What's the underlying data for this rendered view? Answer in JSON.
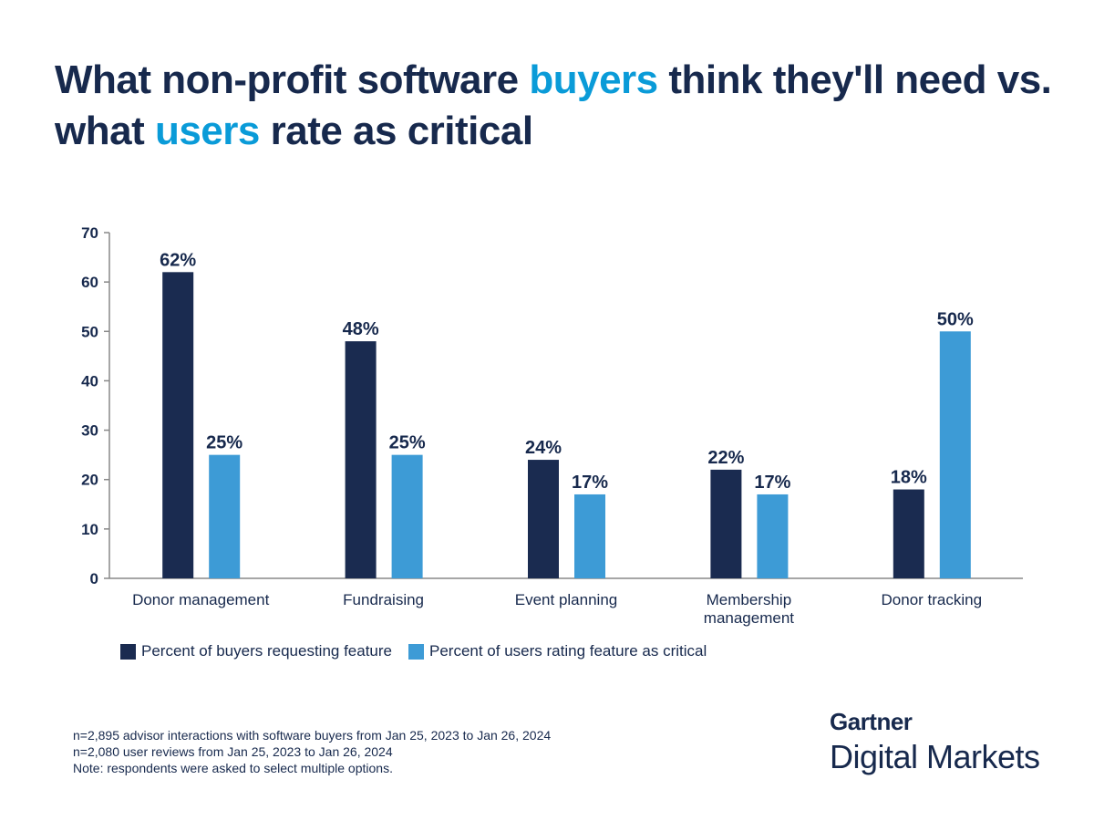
{
  "title": {
    "part1": "What non-profit software ",
    "hl1": "buyers",
    "part2": " think they'll need vs. what ",
    "hl2": "users",
    "part3": " rate as critical"
  },
  "chart_data": {
    "type": "bar",
    "categories": [
      "Donor management",
      "Fundraising",
      "Event planning",
      "Membership management",
      "Donor tracking"
    ],
    "series": [
      {
        "name": "Percent of buyers requesting feature",
        "values": [
          62,
          48,
          24,
          22,
          18
        ],
        "color": "#1a2b50",
        "labels": [
          "62%",
          "48%",
          "24%",
          "22%",
          "18%"
        ]
      },
      {
        "name": "Percent of users rating feature as critical",
        "values": [
          25,
          25,
          17,
          17,
          50
        ],
        "color": "#3d9bd6",
        "labels": [
          "25%",
          "25%",
          "17%",
          "17%",
          "50%"
        ]
      }
    ],
    "yticks": [
      0,
      10,
      20,
      30,
      40,
      50,
      60,
      70
    ],
    "ylim": [
      0,
      70
    ],
    "grid": false,
    "legend": "bottom-left"
  },
  "notes": [
    "n=2,895 advisor interactions with software buyers from Jan 25, 2023 to Jan 26, 2024",
    "n=2,080 user reviews from Jan 25, 2023 to Jan 26, 2024",
    "Note: respondents were asked to select multiple options."
  ],
  "logo": {
    "brand": "Gartner",
    "sub": "Digital Markets"
  }
}
